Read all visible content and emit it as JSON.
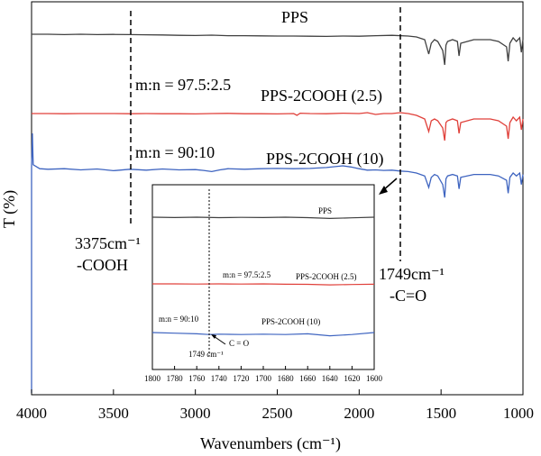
{
  "chart_data": [
    {
      "type": "line",
      "xlabel": "Wavenumbers (cm⁻¹)",
      "ylabel": "T (%)",
      "xlim": [
        4000,
        1000
      ],
      "x_reversed": true,
      "x_ticks": [
        4000,
        3500,
        3000,
        2500,
        2000,
        1500,
        1000
      ],
      "y_ticks_shown": false,
      "series": [
        {
          "name": "PPS",
          "color": "#404040",
          "offset": 0.0,
          "points": [
            [
              4000,
              0.02
            ],
            [
              3900,
              0.02
            ],
            [
              3800,
              0.022
            ],
            [
              3700,
              0.02
            ],
            [
              3600,
              0.022
            ],
            [
              3500,
              0.021
            ],
            [
              3400,
              0.022
            ],
            [
              3300,
              0.023
            ],
            [
              3200,
              0.024
            ],
            [
              3100,
              0.026
            ],
            [
              3000,
              0.027
            ],
            [
              2900,
              0.025
            ],
            [
              2800,
              0.028
            ],
            [
              2700,
              0.028
            ],
            [
              2600,
              0.029
            ],
            [
              2500,
              0.03
            ],
            [
              2400,
              0.03
            ],
            [
              2300,
              0.031
            ],
            [
              2200,
              0.032
            ],
            [
              2100,
              0.03
            ],
            [
              2000,
              0.031
            ],
            [
              1900,
              0.028
            ],
            [
              1800,
              0.026
            ],
            [
              1700,
              0.03
            ],
            [
              1650,
              0.035
            ],
            [
              1600,
              0.05
            ],
            [
              1575,
              0.13
            ],
            [
              1560,
              0.07
            ],
            [
              1540,
              0.05
            ],
            [
              1520,
              0.06
            ],
            [
              1490,
              0.11
            ],
            [
              1478,
              0.19
            ],
            [
              1470,
              0.08
            ],
            [
              1460,
              0.06
            ],
            [
              1430,
              0.05
            ],
            [
              1400,
              0.06
            ],
            [
              1390,
              0.14
            ],
            [
              1380,
              0.07
            ],
            [
              1300,
              0.05
            ],
            [
              1200,
              0.05
            ],
            [
              1150,
              0.06
            ],
            [
              1100,
              0.09
            ],
            [
              1090,
              0.17
            ],
            [
              1080,
              0.07
            ],
            [
              1060,
              0.04
            ],
            [
              1040,
              0.06
            ],
            [
              1020,
              0.04
            ],
            [
              1010,
              0.12
            ],
            [
              1000,
              0.05
            ]
          ]
        },
        {
          "name": "PPS-2COOH (2.5)",
          "color": "#e0403a",
          "offset": 0.0,
          "points": [
            [
              4000,
              0.02
            ],
            [
              3900,
              0.02
            ],
            [
              3800,
              0.021
            ],
            [
              3700,
              0.02
            ],
            [
              3600,
              0.02
            ],
            [
              3500,
              0.02
            ],
            [
              3400,
              0.021
            ],
            [
              3300,
              0.02
            ],
            [
              3200,
              0.021
            ],
            [
              3100,
              0.021
            ],
            [
              3000,
              0.022
            ],
            [
              2900,
              0.02
            ],
            [
              2800,
              0.019
            ],
            [
              2700,
              0.021
            ],
            [
              2600,
              0.021
            ],
            [
              2500,
              0.022
            ],
            [
              2400,
              0.02
            ],
            [
              2380,
              0.03
            ],
            [
              2360,
              0.018
            ],
            [
              2300,
              0.02
            ],
            [
              2200,
              0.021
            ],
            [
              2100,
              0.018
            ],
            [
              2000,
              0.02
            ],
            [
              1950,
              0.015
            ],
            [
              1900,
              0.025
            ],
            [
              1850,
              0.02
            ],
            [
              1800,
              0.02
            ],
            [
              1750,
              0.015
            ],
            [
              1700,
              0.02
            ],
            [
              1650,
              0.03
            ],
            [
              1600,
              0.05
            ],
            [
              1575,
              0.12
            ],
            [
              1560,
              0.06
            ],
            [
              1540,
              0.05
            ],
            [
              1520,
              0.06
            ],
            [
              1490,
              0.1
            ],
            [
              1478,
              0.17
            ],
            [
              1470,
              0.07
            ],
            [
              1460,
              0.06
            ],
            [
              1430,
              0.05
            ],
            [
              1400,
              0.06
            ],
            [
              1390,
              0.13
            ],
            [
              1380,
              0.07
            ],
            [
              1300,
              0.05
            ],
            [
              1200,
              0.05
            ],
            [
              1150,
              0.06
            ],
            [
              1100,
              0.09
            ],
            [
              1090,
              0.16
            ],
            [
              1080,
              0.07
            ],
            [
              1060,
              0.04
            ],
            [
              1040,
              0.06
            ],
            [
              1020,
              0.04
            ],
            [
              1010,
              0.11
            ],
            [
              1000,
              0.05
            ]
          ]
        },
        {
          "name": "PPS-2COOH (10)",
          "color": "#3e64c0",
          "offset": 0.0,
          "points": [
            [
              4000,
              0.0
            ],
            [
              3995,
              0.6
            ],
            [
              3990,
              0.02
            ],
            [
              3950,
              0.02
            ],
            [
              3900,
              0.024
            ],
            [
              3800,
              0.02
            ],
            [
              3700,
              0.028
            ],
            [
              3600,
              0.022
            ],
            [
              3500,
              0.034
            ],
            [
              3400,
              0.024
            ],
            [
              3300,
              0.03
            ],
            [
              3200,
              0.022
            ],
            [
              3100,
              0.028
            ],
            [
              3000,
              0.026
            ],
            [
              2950,
              0.032
            ],
            [
              2900,
              0.04
            ],
            [
              2850,
              0.028
            ],
            [
              2800,
              0.02
            ],
            [
              2700,
              0.024
            ],
            [
              2600,
              0.02
            ],
            [
              2500,
              0.018
            ],
            [
              2400,
              0.02
            ],
            [
              2300,
              0.018
            ],
            [
              2200,
              0.012
            ],
            [
              2100,
              0.0
            ],
            [
              2050,
              0.008
            ],
            [
              2000,
              0.02
            ],
            [
              1950,
              0.03
            ],
            [
              1900,
              0.028
            ],
            [
              1850,
              0.032
            ],
            [
              1800,
              0.03
            ],
            [
              1750,
              0.036
            ],
            [
              1700,
              0.04
            ],
            [
              1650,
              0.05
            ],
            [
              1600,
              0.07
            ],
            [
              1575,
              0.15
            ],
            [
              1560,
              0.08
            ],
            [
              1540,
              0.06
            ],
            [
              1520,
              0.07
            ],
            [
              1490,
              0.13
            ],
            [
              1478,
              0.22
            ],
            [
              1470,
              0.09
            ],
            [
              1460,
              0.07
            ],
            [
              1430,
              0.06
            ],
            [
              1400,
              0.07
            ],
            [
              1390,
              0.16
            ],
            [
              1380,
              0.08
            ],
            [
              1300,
              0.06
            ],
            [
              1200,
              0.06
            ],
            [
              1150,
              0.07
            ],
            [
              1100,
              0.1
            ],
            [
              1090,
              0.19
            ],
            [
              1080,
              0.08
            ],
            [
              1060,
              0.05
            ],
            [
              1040,
              0.07
            ],
            [
              1020,
              0.05
            ],
            [
              1010,
              0.13
            ],
            [
              1000,
              0.06
            ]
          ]
        }
      ],
      "annotations": [
        {
          "text": "m:n = 97.5:2.5"
        },
        {
          "text": "m:n = 90:10"
        },
        {
          "text": "3375cm⁻¹"
        },
        {
          "text": "-COOH"
        },
        {
          "text": "1749cm⁻¹"
        },
        {
          "text": "-C=O"
        }
      ]
    },
    {
      "type": "line",
      "role": "inset",
      "xlim": [
        1800,
        1600
      ],
      "x_reversed": true,
      "x_ticks": [
        1800,
        1780,
        1760,
        1740,
        1720,
        1700,
        1680,
        1660,
        1640,
        1620,
        1600
      ],
      "series": [
        {
          "name": "PPS",
          "color": "#404040",
          "points": [
            [
              1800,
              0.0
            ],
            [
              1780,
              0.002
            ],
            [
              1760,
              0.0
            ],
            [
              1740,
              0.003
            ],
            [
              1720,
              0.001
            ],
            [
              1700,
              0.002
            ],
            [
              1680,
              0.0
            ],
            [
              1660,
              0.003
            ],
            [
              1640,
              0.008
            ],
            [
              1620,
              0.004
            ],
            [
              1600,
              0.0
            ]
          ]
        },
        {
          "name": "PPS-2COOH (2.5)",
          "color": "#e0403a",
          "points": [
            [
              1800,
              0.0
            ],
            [
              1780,
              0.0
            ],
            [
              1760,
              0.001
            ],
            [
              1740,
              0.0
            ],
            [
              1720,
              0.001
            ],
            [
              1700,
              0.0
            ],
            [
              1680,
              0.002
            ],
            [
              1660,
              0.003
            ],
            [
              1640,
              0.006
            ],
            [
              1620,
              0.004
            ],
            [
              1600,
              0.002
            ]
          ]
        },
        {
          "name": "PPS-2COOH (10)",
          "color": "#3e64c0",
          "points": [
            [
              1800,
              0.0
            ],
            [
              1780,
              0.004
            ],
            [
              1760,
              0.008
            ],
            [
              1749,
              0.012
            ],
            [
              1740,
              0.01
            ],
            [
              1720,
              0.012
            ],
            [
              1700,
              0.01
            ],
            [
              1680,
              0.012
            ],
            [
              1660,
              0.008
            ],
            [
              1640,
              0.02
            ],
            [
              1620,
              0.012
            ],
            [
              1600,
              0.0
            ]
          ]
        }
      ],
      "annotations": [
        {
          "text": "m:n = 97.5:2.5"
        },
        {
          "text": "m:n = 90:10"
        },
        {
          "text": "1749 cm⁻¹"
        },
        {
          "text": "C = O"
        }
      ]
    }
  ]
}
